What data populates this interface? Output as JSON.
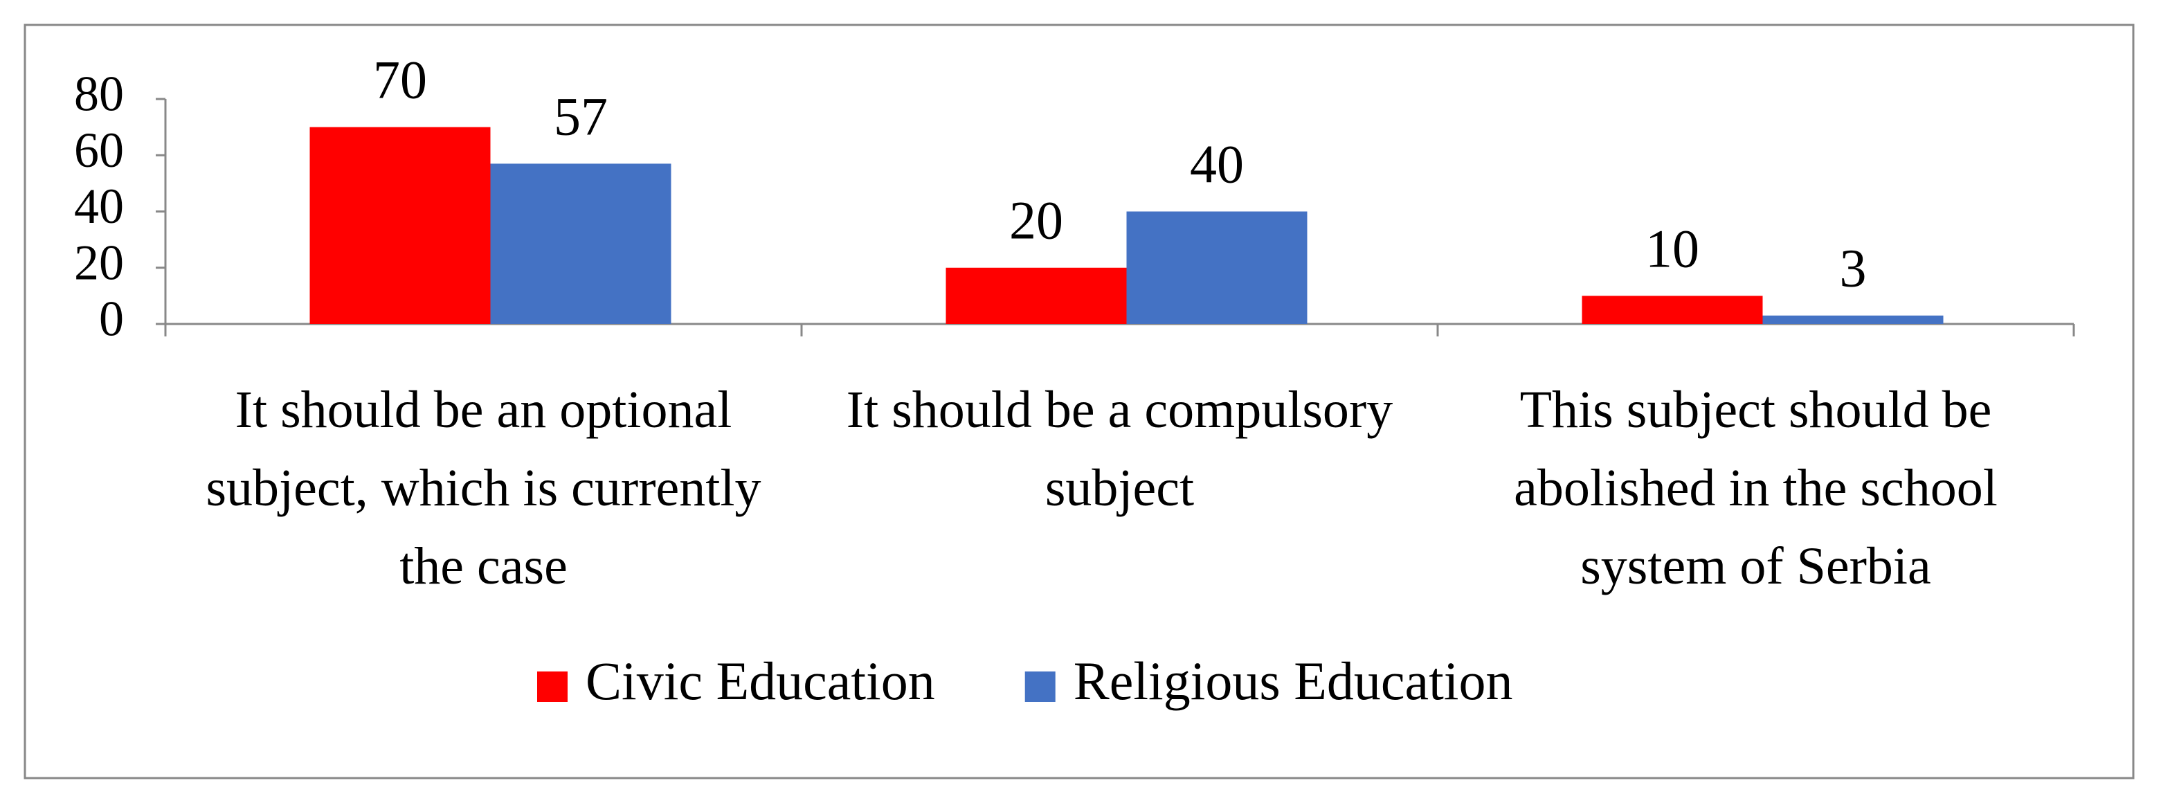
{
  "chart_data": {
    "type": "bar",
    "categories": [
      "It should be an optional subject, which is currently the case",
      "It should be a compulsory subject",
      "This subject should be abolished in the school system of Serbia"
    ],
    "series": [
      {
        "name": "Civic Education",
        "color": "#ff0000",
        "values": [
          70,
          20,
          10
        ]
      },
      {
        "name": "Religious Education",
        "color": "#4472c4",
        "values": [
          57,
          40,
          3
        ]
      }
    ],
    "ylim": [
      0,
      80
    ],
    "yticks": [
      0,
      20,
      40,
      60,
      80
    ],
    "grid": false
  }
}
